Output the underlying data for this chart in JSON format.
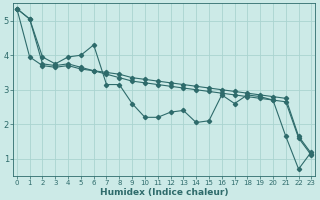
{
  "xlabel": "Humidex (Indice chaleur)",
  "bg_color": "#cceae7",
  "grid_color": "#aad4d0",
  "line_color": "#2e6b6b",
  "line1_y": [
    5.35,
    5.05,
    3.95,
    3.75,
    3.95,
    4.0,
    4.3,
    3.15,
    3.15,
    2.6,
    2.2,
    2.2,
    2.35,
    2.4,
    2.05,
    2.1,
    2.85,
    2.6,
    2.85,
    2.8,
    2.7,
    1.65,
    0.7,
    1.2
  ],
  "line2_y": [
    5.35,
    5.05,
    3.75,
    3.7,
    3.75,
    3.65,
    3.55,
    3.5,
    3.45,
    3.35,
    3.3,
    3.25,
    3.2,
    3.15,
    3.1,
    3.05,
    3.0,
    2.95,
    2.9,
    2.85,
    2.8,
    2.75,
    1.65,
    1.15
  ],
  "line3_y": [
    5.35,
    3.95,
    3.7,
    3.65,
    3.7,
    3.6,
    3.55,
    3.45,
    3.35,
    3.25,
    3.2,
    3.15,
    3.1,
    3.05,
    3.0,
    2.95,
    2.9,
    2.85,
    2.8,
    2.75,
    2.7,
    2.65,
    1.6,
    1.1
  ],
  "xlim": [
    0,
    23
  ],
  "ylim": [
    0.5,
    5.5
  ],
  "yticks": [
    1,
    2,
    3,
    4,
    5
  ],
  "xticks": [
    0,
    1,
    2,
    3,
    4,
    5,
    6,
    7,
    8,
    9,
    10,
    11,
    12,
    13,
    14,
    15,
    16,
    17,
    18,
    19,
    20,
    21,
    22,
    23
  ],
  "tick_fontsize": 5.5,
  "xlabel_fontsize": 6.5
}
